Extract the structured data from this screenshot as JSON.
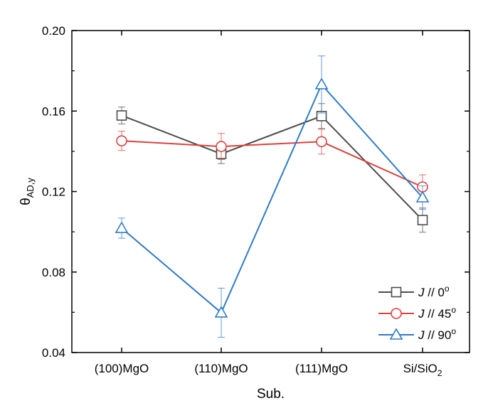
{
  "chart_data": {
    "type": "line",
    "xlabel": "Sub.",
    "ylabel_main": "θ",
    "ylabel_sub": "AD,y",
    "categories": [
      {
        "main": "(100)MgO",
        "sub": ""
      },
      {
        "main": "(110)MgO",
        "sub": ""
      },
      {
        "main": "(111)MgO",
        "sub": ""
      },
      {
        "main": "Si/SiO",
        "sub": "2"
      }
    ],
    "ylim": [
      0.04,
      0.2
    ],
    "yticks": [
      0.04,
      0.08,
      0.12,
      0.16,
      0.2
    ],
    "ytick_labels": [
      "0.04",
      "0.08",
      "0.12",
      "0.16",
      "0.20"
    ],
    "legend_position": "bottom-right",
    "series": [
      {
        "name": "J // 0",
        "name_italic": "J",
        "name_rest": " // 0",
        "name_sup": "o",
        "marker": "square",
        "color": "#4d4d4d",
        "values": [
          0.1578,
          0.1387,
          0.1575,
          0.1058
        ],
        "errors": [
          0.0042,
          0.0048,
          0.0062,
          0.006
        ]
      },
      {
        "name": "J // 45",
        "name_italic": "J",
        "name_rest": " // 45",
        "name_sup": "o",
        "marker": "circle",
        "color": "#d9433f",
        "values": [
          0.1452,
          0.1424,
          0.1448,
          0.1223
        ],
        "errors": [
          0.0048,
          0.0065,
          0.0062,
          0.006
        ]
      },
      {
        "name": "J // 90",
        "name_italic": "J",
        "name_rest": " // 90",
        "name_sup": "o",
        "marker": "triangle",
        "color": "#2f7bc7",
        "values": [
          0.1018,
          0.0598,
          0.1732,
          0.117
        ],
        "errors": [
          0.005,
          0.0122,
          0.0142,
          0.0058
        ]
      }
    ]
  }
}
